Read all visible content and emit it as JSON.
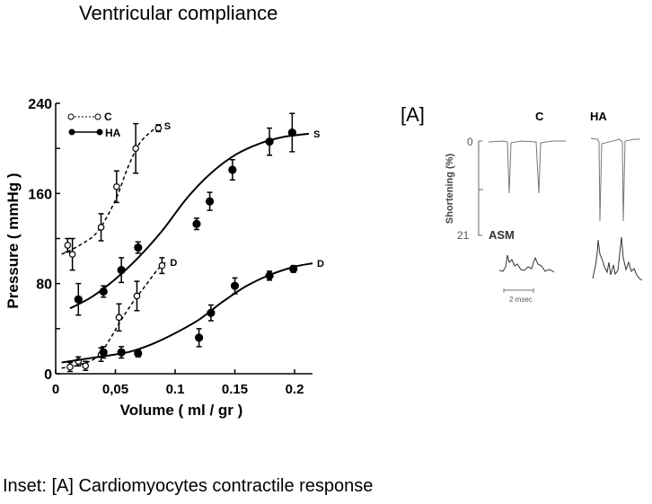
{
  "title": "Ventricular compliance",
  "caption": "Inset: [A] Cardiomyocytes contractile response",
  "chart_data": [
    {
      "type": "scatter",
      "xlabel": "Volume ( ml / gr )",
      "ylabel": "Pressure ( mmHg )",
      "xlim": [
        0,
        0.215
      ],
      "ylim": [
        0,
        240
      ],
      "xticks": [
        0,
        0.05,
        0.1,
        0.15,
        0.2
      ],
      "xtick_labels": [
        "0",
        "0,05",
        "0.1",
        "0.15",
        "0.2"
      ],
      "yticks": [
        0,
        40,
        80,
        120,
        160,
        200,
        240
      ],
      "ytick_labels": [
        "0",
        "",
        "80",
        "",
        "160",
        "",
        "240"
      ],
      "grid": false,
      "legend_position": "top-left",
      "legend": [
        {
          "label": "C",
          "marker": "open-circle",
          "line": "dashed"
        },
        {
          "label": "HA",
          "marker": "filled-circle",
          "line": "solid"
        }
      ],
      "series": [
        {
          "group": "C",
          "curve_label": "S",
          "marker": "open",
          "line": "dashed",
          "points": [
            [
              0.01,
              114,
              6
            ],
            [
              0.014,
              106,
              14
            ],
            [
              0.038,
              130,
              12
            ],
            [
              0.051,
              166,
              14
            ],
            [
              0.067,
              200,
              22
            ],
            [
              0.086,
              218,
              3
            ]
          ],
          "fit": [
            [
              0.005,
              106
            ],
            [
              0.02,
              114
            ],
            [
              0.035,
              126
            ],
            [
              0.05,
              154
            ],
            [
              0.06,
              182
            ],
            [
              0.07,
              204
            ],
            [
              0.08,
              215
            ],
            [
              0.087,
              220
            ]
          ]
        },
        {
          "group": "C",
          "curve_label": "D",
          "marker": "open",
          "line": "dashed",
          "points": [
            [
              0.012,
              6,
              4
            ],
            [
              0.019,
              11,
              4
            ],
            [
              0.025,
              7,
              4
            ],
            [
              0.038,
              17,
              6
            ],
            [
              0.053,
              50,
              12
            ],
            [
              0.068,
              69,
              13
            ],
            [
              0.089,
              96,
              7
            ]
          ],
          "fit": [
            [
              0.005,
              5
            ],
            [
              0.02,
              8
            ],
            [
              0.035,
              15
            ],
            [
              0.045,
              30
            ],
            [
              0.055,
              48
            ],
            [
              0.065,
              64
            ],
            [
              0.075,
              78
            ],
            [
              0.085,
              92
            ],
            [
              0.092,
              99
            ]
          ]
        },
        {
          "group": "HA",
          "curve_label": "S",
          "marker": "filled",
          "line": "solid",
          "points": [
            [
              0.019,
              66,
              14
            ],
            [
              0.04,
              73,
              5
            ],
            [
              0.055,
              92,
              11
            ],
            [
              0.069,
              112,
              5
            ],
            [
              0.118,
              133,
              5
            ],
            [
              0.129,
              153,
              8
            ],
            [
              0.148,
              181,
              9
            ],
            [
              0.179,
              206,
              12
            ],
            [
              0.198,
              214,
              17
            ]
          ],
          "fit": [
            [
              0.012,
              58
            ],
            [
              0.03,
              68
            ],
            [
              0.05,
              84
            ],
            [
              0.07,
              104
            ],
            [
              0.09,
              128
            ],
            [
              0.11,
              156
            ],
            [
              0.13,
              178
            ],
            [
              0.15,
              194
            ],
            [
              0.17,
              204
            ],
            [
              0.19,
              210
            ],
            [
              0.212,
              213
            ]
          ]
        },
        {
          "group": "HA",
          "curve_label": "D",
          "marker": "filled",
          "line": "solid",
          "points": [
            [
              0.04,
              19,
              5
            ],
            [
              0.055,
              19,
              5
            ],
            [
              0.069,
              18,
              3
            ],
            [
              0.12,
              32,
              8
            ],
            [
              0.13,
              54,
              7
            ],
            [
              0.15,
              78,
              7
            ],
            [
              0.179,
              87,
              4
            ],
            [
              0.199,
              93,
              3
            ]
          ],
          "fit": [
            [
              0.005,
              10
            ],
            [
              0.03,
              14
            ],
            [
              0.06,
              19
            ],
            [
              0.08,
              26
            ],
            [
              0.1,
              36
            ],
            [
              0.12,
              48
            ],
            [
              0.14,
              64
            ],
            [
              0.16,
              78
            ],
            [
              0.18,
              88
            ],
            [
              0.2,
              95
            ],
            [
              0.215,
              98
            ]
          ]
        }
      ]
    },
    {
      "type": "line",
      "panel_label": "[A]",
      "ylabel": "Shortening (%)",
      "ytick_labels": [
        "0",
        "21"
      ],
      "columns": [
        "C",
        "HA"
      ],
      "trace_label": "ASM",
      "scale_bar_label": "2 msec"
    }
  ]
}
